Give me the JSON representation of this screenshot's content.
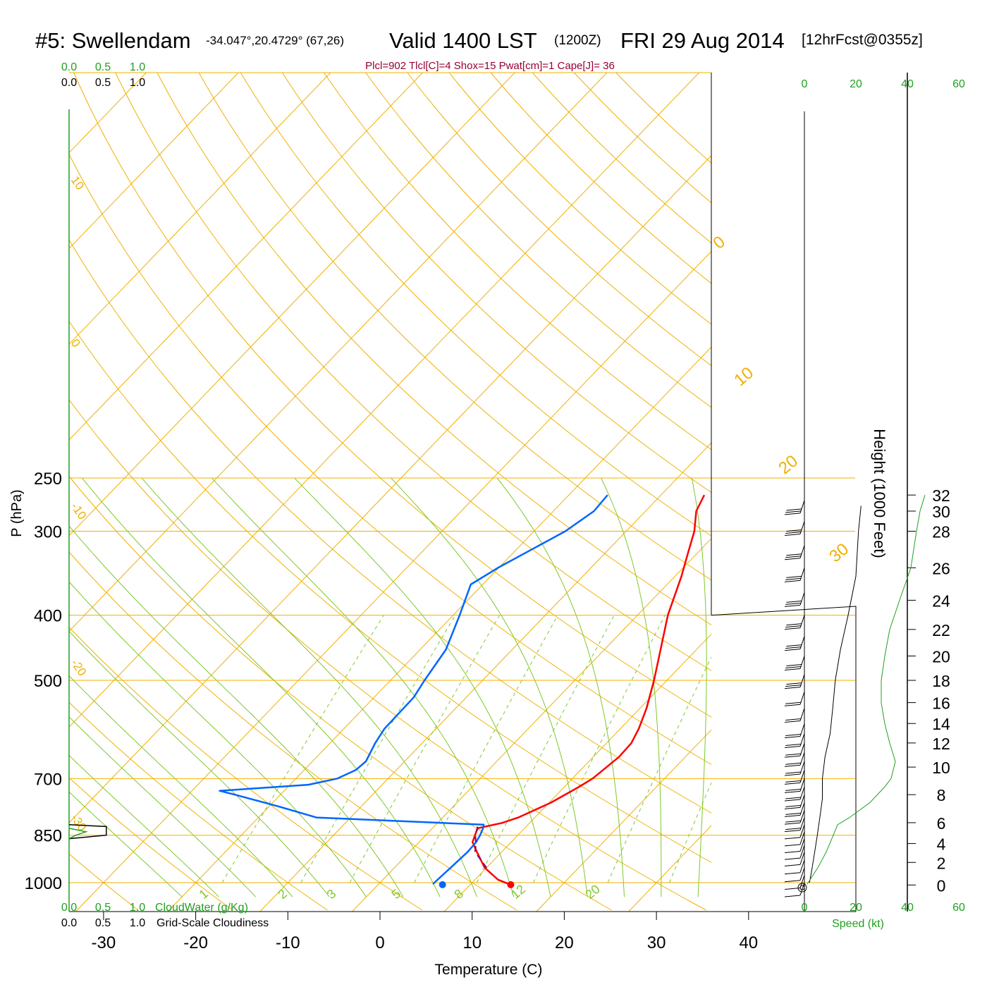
{
  "chart_data": {
    "type": "line",
    "subtype": "skew-t log-p sounding",
    "title": {
      "station": "#5: Swellendam",
      "coords": "-34.047°,20.4729° (67,26)",
      "valid": "Valid 1400 LST",
      "zulu": "(1200Z)",
      "date": "FRI 29 Aug 2014",
      "forecast": "[12hrFcst@0355z]"
    },
    "subtitle": "Plcl=902 Tlcl[C]=4 Shox=15 Pwat[cm]=1 Cape[J]= 36",
    "xlabel": "Temperature (C)",
    "ylabel": "P (hPa)",
    "y2label": "Height (1000 Feet)",
    "xlim": [
      -30,
      40
    ],
    "x_ticks": [
      -30,
      -20,
      -10,
      0,
      10,
      20,
      30,
      40
    ],
    "y_ticks": [
      250,
      300,
      400,
      500,
      700,
      850,
      1000
    ],
    "height_ticks": [
      32,
      30,
      28,
      26,
      24,
      22,
      20,
      18,
      16,
      14,
      12,
      10,
      8,
      6,
      4,
      2,
      0
    ],
    "speed_ticks_top": [
      "0",
      "20",
      "40",
      "60"
    ],
    "speed_ticks_bottom": [
      "0",
      "20",
      "40",
      "60"
    ],
    "speed_label": "Speed (kt)",
    "cloud_scale_green": [
      "0.0",
      "0.5",
      "1.0"
    ],
    "cloud_scale_black": [
      "0.0",
      "0.5",
      "1.0"
    ],
    "cloudwater_label": "CloudWater (g/Kg)",
    "cloudiness_label": "Grid-Scale Cloudiness",
    "dry_adiabat_labels": [
      "10",
      "0",
      "-10",
      "-20",
      "-30"
    ],
    "isotherm_labels": [
      "0",
      "10",
      "20",
      "30"
    ],
    "mixing_ratio_labels": [
      "1",
      "2",
      "3",
      "5",
      "8",
      "12",
      "20"
    ],
    "series": [
      {
        "name": "temperature",
        "color": "#ff0000",
        "points": [
          [
            1007,
            14.4
          ],
          [
            990,
            12.5
          ],
          [
            950,
            9.8
          ],
          [
            900,
            7.3
          ],
          [
            870,
            5.8
          ],
          [
            830,
            4.9
          ],
          [
            815,
            7.0
          ],
          [
            800,
            8.2
          ],
          [
            760,
            10.2
          ],
          [
            720,
            11.6
          ],
          [
            700,
            12.2
          ],
          [
            650,
            12.8
          ],
          [
            620,
            12.7
          ],
          [
            590,
            12.0
          ],
          [
            550,
            10.7
          ],
          [
            500,
            8.6
          ],
          [
            450,
            6.1
          ],
          [
            400,
            3.3
          ],
          [
            350,
            0.7
          ],
          [
            325,
            -0.9
          ],
          [
            300,
            -2.6
          ],
          [
            280,
            -4.5
          ],
          [
            265,
            -5.3
          ]
        ]
      },
      {
        "name": "dewpoint",
        "color": "#0066ff",
        "points": [
          [
            1005,
            5.9
          ],
          [
            1000,
            5.9
          ],
          [
            950,
            6.1
          ],
          [
            900,
            6.3
          ],
          [
            870,
            6.2
          ],
          [
            850,
            5.9
          ],
          [
            830,
            5.5
          ],
          [
            820,
            5.2
          ],
          [
            800,
            -13.7
          ],
          [
            770,
            -19.0
          ],
          [
            740,
            -24.9
          ],
          [
            730,
            -27.0
          ],
          [
            715,
            -18.0
          ],
          [
            700,
            -15.5
          ],
          [
            680,
            -14.4
          ],
          [
            660,
            -14.2
          ],
          [
            620,
            -15.1
          ],
          [
            590,
            -15.6
          ],
          [
            530,
            -15.7
          ],
          [
            500,
            -16.3
          ],
          [
            450,
            -17.2
          ],
          [
            400,
            -19.3
          ],
          [
            360,
            -21.3
          ],
          [
            340,
            -20.1
          ],
          [
            300,
            -16.6
          ],
          [
            280,
            -15.6
          ],
          [
            265,
            -15.8
          ]
        ]
      },
      {
        "name": "parcel",
        "color": "#800080",
        "dashed": true,
        "points": [
          [
            950,
            10.0
          ],
          [
            900,
            7.1
          ],
          [
            880,
            6.5
          ],
          [
            850,
            5.4
          ],
          [
            830,
            4.9
          ],
          [
            815,
            4.2
          ]
        ]
      }
    ],
    "surface_temperature": [
      1007,
      14.4
    ],
    "surface_dewpoint": [
      1007,
      7.0
    ],
    "wind_profile": {
      "speed_kt": [
        [
          1000,
          2
        ],
        [
          950,
          3
        ],
        [
          900,
          4
        ],
        [
          850,
          5
        ],
        [
          800,
          6
        ],
        [
          750,
          7
        ],
        [
          700,
          7
        ],
        [
          650,
          8
        ],
        [
          600,
          10
        ],
        [
          550,
          11
        ],
        [
          500,
          12
        ],
        [
          450,
          14
        ],
        [
          400,
          17
        ],
        [
          350,
          20
        ],
        [
          300,
          21
        ],
        [
          275,
          22
        ]
      ],
      "barb_pressures": [
        1000,
        975,
        950,
        925,
        900,
        880,
        860,
        840,
        820,
        800,
        780,
        760,
        740,
        720,
        700,
        680,
        660,
        640,
        620,
        600,
        580,
        550,
        520,
        490,
        460,
        430,
        400,
        370,
        340,
        315,
        290,
        270
      ]
    },
    "height_profile_kft": [
      [
        1000,
        0.5
      ],
      [
        950,
        1.5
      ],
      [
        900,
        3
      ],
      [
        850,
        5
      ],
      [
        820,
        5.8
      ],
      [
        800,
        6.5
      ],
      [
        760,
        7.5
      ],
      [
        720,
        8.5
      ],
      [
        700,
        9
      ],
      [
        660,
        10.5
      ],
      [
        640,
        11
      ],
      [
        600,
        13
      ],
      [
        560,
        15
      ],
      [
        520,
        17
      ],
      [
        500,
        18
      ],
      [
        460,
        20
      ],
      [
        420,
        22
      ],
      [
        380,
        24
      ],
      [
        340,
        26
      ],
      [
        300,
        28
      ],
      [
        280,
        30
      ],
      [
        265,
        32
      ]
    ],
    "cloudiness_profile": [
      [
        820,
        0.0
      ],
      [
        825,
        0.55
      ],
      [
        850,
        0.55
      ],
      [
        860,
        0.0
      ]
    ],
    "cloudwater_profile": [
      [
        830,
        0.0
      ],
      [
        840,
        0.25
      ],
      [
        850,
        0.1
      ],
      [
        860,
        0.0
      ]
    ]
  }
}
